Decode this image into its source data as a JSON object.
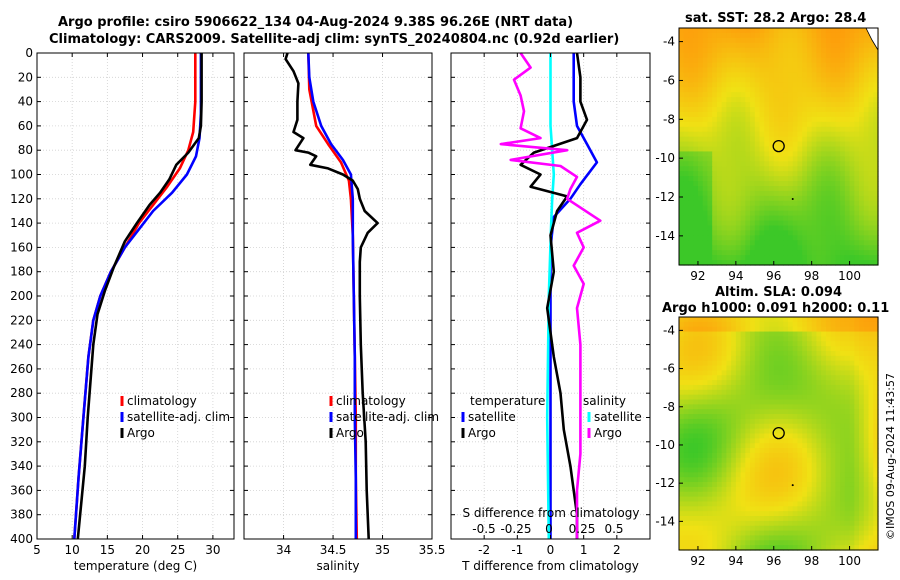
{
  "titles": {
    "line1": "Argo profile: csiro 5906622_134 04-Aug-2024 9.38S 96.26E (NRT data)",
    "line2": "Climatology: CARS2009. Satellite-adj clim: synTS_20240804.nc (0.92d earlier)",
    "sst": "sat. SST: 28.2 Argo: 28.4",
    "sla1": "Altim. SLA: 0.094",
    "sla2": "Argo h1000: 0.091 h2000: 0.11"
  },
  "copyright": "©IMOS 09-Aug-2024 11:43:57",
  "colors": {
    "climatology": "#ff0000",
    "satellite": "#0000ff",
    "argo": "#000000",
    "s_sat": "#00ffff",
    "s_argo": "#ff00ff"
  },
  "chart_data": [
    {
      "id": "temperature",
      "type": "line",
      "xlabel": "temperature (deg C)",
      "ylabel": "",
      "xlim": [
        5,
        33
      ],
      "ylim": [
        400,
        0
      ],
      "xticks": [
        5,
        10,
        15,
        20,
        25,
        30
      ],
      "yticks": [
        0,
        20,
        40,
        60,
        80,
        100,
        120,
        140,
        160,
        180,
        200,
        220,
        240,
        260,
        280,
        300,
        320,
        340,
        360,
        380,
        400
      ],
      "legend": [
        "climatology",
        "satellite-adj. clim",
        "Argo"
      ],
      "series": [
        {
          "name": "climatology",
          "color": "#ff0000",
          "points": [
            [
              27.5,
              0
            ],
            [
              27.5,
              40
            ],
            [
              27.2,
              65
            ],
            [
              26.5,
              80
            ],
            [
              25.3,
              95
            ],
            [
              23.5,
              110
            ],
            [
              21.5,
              125
            ],
            [
              19.5,
              140
            ],
            [
              17.5,
              160
            ],
            [
              15.5,
              180
            ],
            [
              14,
              200
            ],
            [
              13,
              220
            ],
            [
              12.3,
              250
            ],
            [
              11.6,
              300
            ],
            [
              10.9,
              350
            ],
            [
              10.3,
              400
            ]
          ]
        },
        {
          "name": "satellite-adj. clim",
          "color": "#0000ff",
          "points": [
            [
              28.3,
              0
            ],
            [
              28.3,
              50
            ],
            [
              28.1,
              70
            ],
            [
              27.6,
              85
            ],
            [
              26.3,
              100
            ],
            [
              24.2,
              115
            ],
            [
              21.5,
              130
            ],
            [
              19.5,
              145
            ],
            [
              17.5,
              160
            ],
            [
              15.5,
              180
            ],
            [
              14,
              200
            ],
            [
              13,
              220
            ],
            [
              12.3,
              250
            ],
            [
              11.6,
              300
            ],
            [
              10.9,
              350
            ],
            [
              10.3,
              400
            ]
          ]
        },
        {
          "name": "Argo",
          "color": "#000000",
          "points": [
            [
              28.4,
              0
            ],
            [
              28.4,
              40
            ],
            [
              28.3,
              60
            ],
            [
              28,
              70
            ],
            [
              26.5,
              82
            ],
            [
              24.8,
              92
            ],
            [
              23.8,
              104
            ],
            [
              22.5,
              115
            ],
            [
              21,
              125
            ],
            [
              19.2,
              140
            ],
            [
              17.5,
              155
            ],
            [
              16,
              175
            ],
            [
              14.7,
              195
            ],
            [
              13.6,
              215
            ],
            [
              13,
              240
            ],
            [
              12.6,
              270
            ],
            [
              12.2,
              300
            ],
            [
              11.8,
              340
            ],
            [
              11.3,
              370
            ],
            [
              10.8,
              400
            ]
          ]
        }
      ]
    },
    {
      "id": "salinity",
      "type": "line",
      "xlabel": "salinity",
      "xlim": [
        33.6,
        35.5
      ],
      "ylim": [
        400,
        0
      ],
      "xticks": [
        34,
        34.5,
        35,
        35.5
      ],
      "legend": [
        "climatology",
        "satellite-adj. clim",
        "Argo"
      ],
      "series": [
        {
          "name": "climatology",
          "color": "#ff0000",
          "points": [
            [
              34.25,
              0
            ],
            [
              34.26,
              30
            ],
            [
              34.33,
              60
            ],
            [
              34.45,
              75
            ],
            [
              34.58,
              90
            ],
            [
              34.66,
              105
            ],
            [
              34.68,
              120
            ],
            [
              34.7,
              150
            ],
            [
              34.71,
              200
            ],
            [
              34.72,
              250
            ],
            [
              34.73,
              300
            ],
            [
              34.73,
              350
            ],
            [
              34.74,
              400
            ]
          ]
        },
        {
          "name": "satellite-adj. clim",
          "color": "#0000ff",
          "points": [
            [
              34.25,
              0
            ],
            [
              34.26,
              20
            ],
            [
              34.3,
              40
            ],
            [
              34.38,
              60
            ],
            [
              34.48,
              75
            ],
            [
              34.6,
              88
            ],
            [
              34.68,
              100
            ],
            [
              34.7,
              120
            ],
            [
              34.7,
              150
            ],
            [
              34.71,
              200
            ],
            [
              34.72,
              250
            ],
            [
              34.72,
              300
            ],
            [
              34.73,
              350
            ],
            [
              34.73,
              400
            ]
          ]
        },
        {
          "name": "Argo",
          "color": "#000000",
          "points": [
            [
              34.04,
              0
            ],
            [
              34.02,
              5
            ],
            [
              34.1,
              15
            ],
            [
              34.15,
              25
            ],
            [
              34.14,
              40
            ],
            [
              34.14,
              55
            ],
            [
              34.1,
              65
            ],
            [
              34.2,
              70
            ],
            [
              34.12,
              80
            ],
            [
              34.25,
              82
            ],
            [
              34.33,
              85
            ],
            [
              34.27,
              92
            ],
            [
              34.45,
              95
            ],
            [
              34.6,
              100
            ],
            [
              34.7,
              105
            ],
            [
              34.75,
              112
            ],
            [
              34.77,
              120
            ],
            [
              34.82,
              130
            ],
            [
              34.95,
              140
            ],
            [
              34.85,
              148
            ],
            [
              34.78,
              160
            ],
            [
              34.77,
              172
            ],
            [
              34.77,
              200
            ],
            [
              34.78,
              240
            ],
            [
              34.8,
              280
            ],
            [
              34.83,
              320
            ],
            [
              34.84,
              360
            ],
            [
              34.86,
              400
            ]
          ]
        }
      ]
    },
    {
      "id": "differences",
      "type": "line",
      "xlabel": "T difference from climatology",
      "xlabel_top": "S difference from climatology",
      "xlim": [
        -3,
        3
      ],
      "ylim": [
        400,
        0
      ],
      "xticks": [
        -2,
        -1,
        0,
        1,
        2
      ],
      "xticks_s": [
        "-0.5",
        "-0.25",
        "0",
        "0.25",
        "0.5"
      ],
      "legend_temperature": [
        "temperature",
        "satellite",
        "Argo"
      ],
      "legend_salinity": [
        "salinity",
        "satellite",
        "Argo"
      ],
      "series": [
        {
          "name": "T satellite",
          "color": "#0000ff",
          "points": [
            [
              0.7,
              0
            ],
            [
              0.7,
              40
            ],
            [
              0.8,
              60
            ],
            [
              1.1,
              75
            ],
            [
              1.4,
              90
            ],
            [
              0.9,
              108
            ],
            [
              0.6,
              120
            ],
            [
              0.1,
              135
            ],
            [
              0,
              160
            ],
            [
              0,
              200
            ],
            [
              0,
              300
            ],
            [
              0,
              400
            ]
          ]
        },
        {
          "name": "S satellite",
          "color": "#00ffff",
          "points": [
            [
              0,
              0
            ],
            [
              0,
              40
            ],
            [
              0,
              60
            ],
            [
              0.05,
              80
            ],
            [
              0.1,
              100
            ],
            [
              0.05,
              120
            ],
            [
              0.02,
              140
            ],
            [
              -0.05,
              200
            ],
            [
              -0.1,
              300
            ],
            [
              -0.05,
              400
            ]
          ]
        },
        {
          "name": "T Argo",
          "color": "#000000",
          "points": [
            [
              0.8,
              0
            ],
            [
              0.9,
              20
            ],
            [
              0.9,
              40
            ],
            [
              1.1,
              55
            ],
            [
              0.8,
              70
            ],
            [
              -0.5,
              82
            ],
            [
              -0.9,
              92
            ],
            [
              -0.3,
              100
            ],
            [
              -0.6,
              110
            ],
            [
              0.5,
              118
            ],
            [
              0.2,
              130
            ],
            [
              0,
              150
            ],
            [
              0.1,
              180
            ],
            [
              -0.1,
              210
            ],
            [
              0.1,
              250
            ],
            [
              0.3,
              280
            ],
            [
              0.4,
              310
            ],
            [
              0.6,
              340
            ],
            [
              0.8,
              380
            ],
            [
              0.8,
              400
            ]
          ]
        },
        {
          "name": "S Argo",
          "color": "#ff00ff",
          "points": [
            [
              -0.9,
              0
            ],
            [
              -0.6,
              12
            ],
            [
              -1.1,
              22
            ],
            [
              -0.9,
              35
            ],
            [
              -0.8,
              48
            ],
            [
              -0.9,
              62
            ],
            [
              -0.3,
              70
            ],
            [
              -1.5,
              75
            ],
            [
              0.5,
              80
            ],
            [
              -1.2,
              88
            ],
            [
              0.3,
              93
            ],
            [
              0.8,
              102
            ],
            [
              0.6,
              112
            ],
            [
              0.5,
              120
            ],
            [
              1.5,
              138
            ],
            [
              0.8,
              148
            ],
            [
              1,
              160
            ],
            [
              0.7,
              175
            ],
            [
              1,
              190
            ],
            [
              0.8,
              210
            ],
            [
              0.9,
              240
            ],
            [
              0.9,
              270
            ],
            [
              0.9,
              300
            ],
            [
              0.9,
              330
            ],
            [
              0.8,
              360
            ],
            [
              0.8,
              400
            ]
          ]
        }
      ]
    },
    {
      "id": "sst-map",
      "type": "heatmap",
      "title": "sat. SST: 28.2 Argo: 28.4",
      "xlim": [
        91,
        101.5
      ],
      "ylim": [
        -15.5,
        -3.3
      ],
      "xticks": [
        92,
        94,
        96,
        98,
        100
      ],
      "yticks": [
        -4,
        -6,
        -8,
        -10,
        -12,
        -14
      ],
      "argo_position": [
        96.26,
        -9.38
      ]
    },
    {
      "id": "sla-map",
      "type": "heatmap",
      "title": "Altim. SLA: 0.094",
      "xlim": [
        91,
        101.5
      ],
      "ylim": [
        -15.5,
        -3.3
      ],
      "xticks": [
        92,
        94,
        96,
        98,
        100
      ],
      "yticks": [
        -4,
        -6,
        -8,
        -10,
        -12,
        -14
      ],
      "argo_position": [
        96.26,
        -9.38
      ]
    }
  ]
}
